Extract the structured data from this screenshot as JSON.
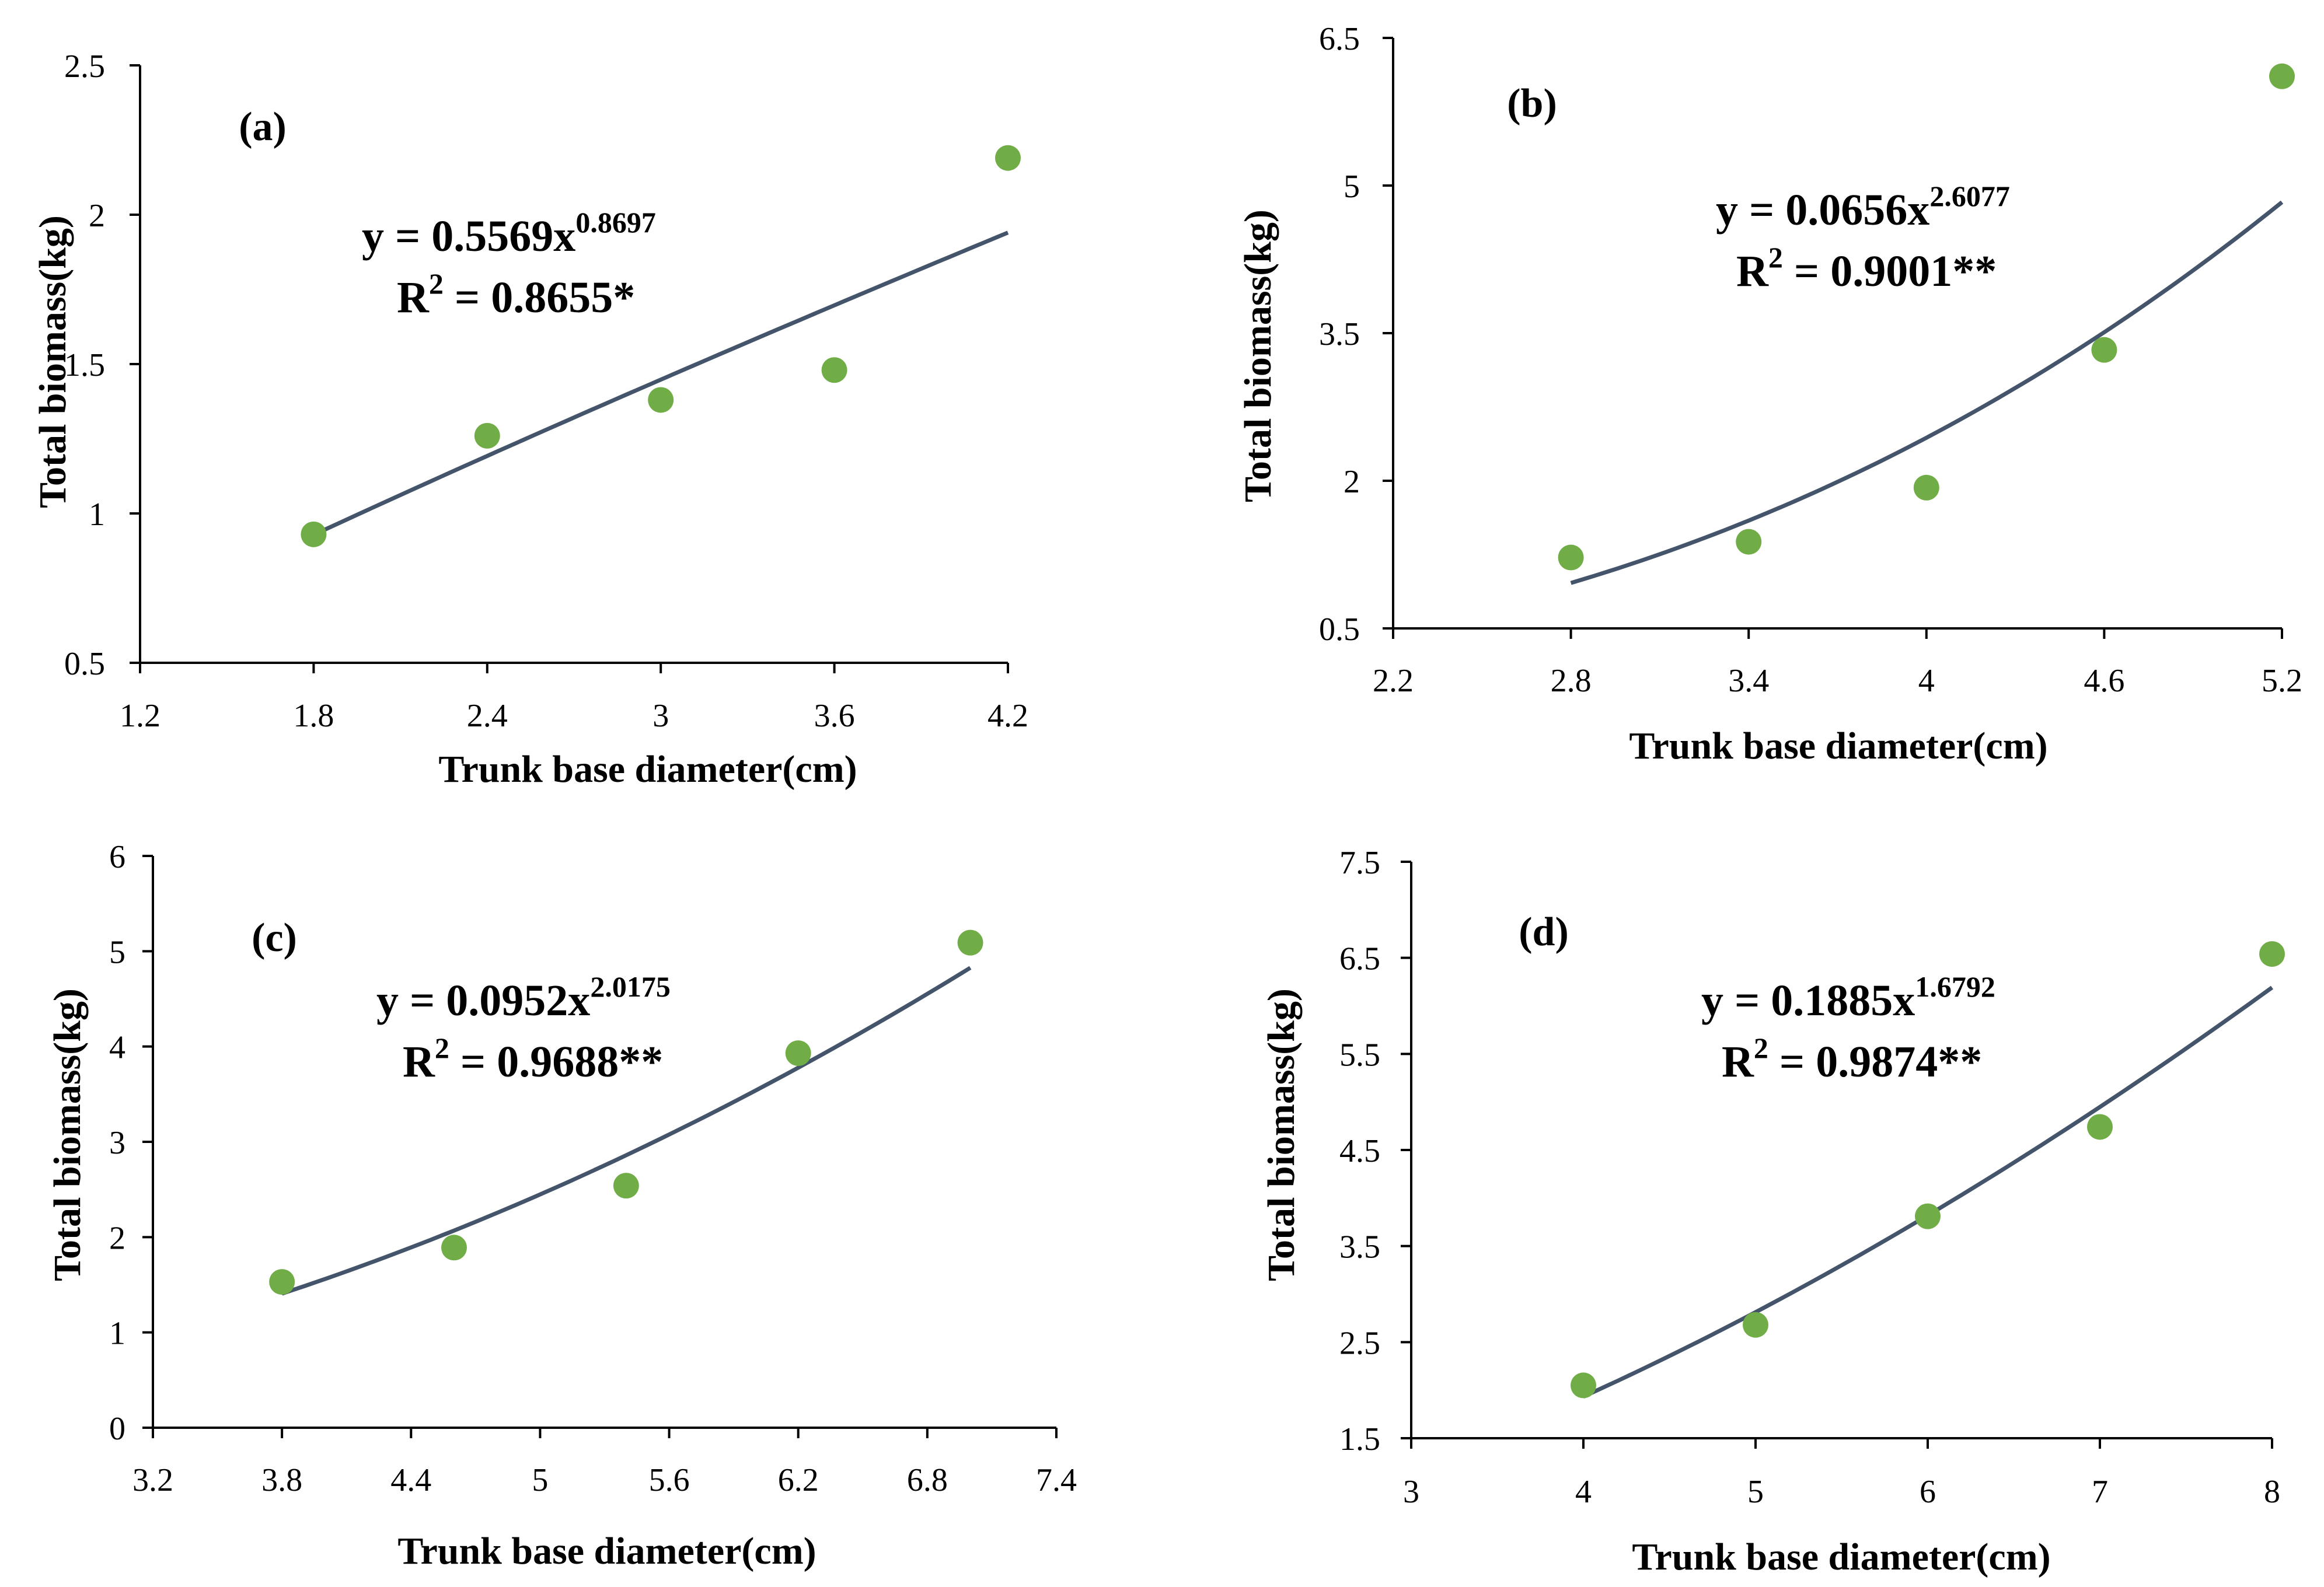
{
  "chart_data": [
    {
      "type": "scatter",
      "panel_label": "(a)",
      "xlabel": "Trunk base diameter(cm)",
      "ylabel": "Total biomass(kg)",
      "xlim": [
        1.2,
        4.2
      ],
      "ylim": [
        0.5,
        2.5
      ],
      "xticks": [
        "1.2",
        "1.8",
        "2.4",
        "3",
        "3.6",
        "4.2"
      ],
      "yticks": [
        "0.5",
        "1",
        "1.5",
        "2",
        "2.5"
      ],
      "x": [
        1.8,
        2.4,
        3.0,
        3.6,
        4.2
      ],
      "y": [
        0.93,
        1.26,
        1.38,
        1.48,
        2.19
      ],
      "fit": {
        "model": "power",
        "a": 0.5569,
        "b": 0.8697,
        "x_range": [
          1.8,
          4.2
        ]
      },
      "equation": {
        "lhs": "y = 0.5569x",
        "exp": "0.8697",
        "r_label": "R",
        "r_sup": "2",
        "r_rhs": " = 0.8655*"
      },
      "marker_color": "#70AD47",
      "line_color": "#44546A"
    },
    {
      "type": "scatter",
      "panel_label": "(b)",
      "xlabel": "Trunk base diameter(cm)",
      "ylabel": "Total biomass(kg)",
      "xlim": [
        2.2,
        5.2
      ],
      "ylim": [
        0.5,
        6.5
      ],
      "xticks": [
        "2.2",
        "2.8",
        "3.4",
        "4",
        "4.6",
        "5.2"
      ],
      "yticks": [
        "0.5",
        "2",
        "3.5",
        "5",
        "6.5"
      ],
      "x": [
        2.8,
        3.4,
        4.0,
        4.6,
        5.2
      ],
      "y": [
        1.22,
        1.38,
        1.93,
        3.33,
        6.11
      ],
      "fit": {
        "model": "power",
        "a": 0.0656,
        "b": 2.6077,
        "x_range": [
          2.8,
          5.2
        ]
      },
      "equation": {
        "lhs": "y = 0.0656x",
        "exp": "2.6077",
        "r_label": "R",
        "r_sup": "2",
        "r_rhs": " = 0.9001**"
      },
      "marker_color": "#70AD47",
      "line_color": "#44546A"
    },
    {
      "type": "scatter",
      "panel_label": "(c)",
      "xlabel": "Trunk base diameter(cm)",
      "ylabel": "Total biomass(kg)",
      "xlim": [
        3.2,
        7.4
      ],
      "ylim": [
        0,
        6
      ],
      "xticks": [
        "3.2",
        "3.8",
        "4.4",
        "5",
        "5.6",
        "6.2",
        "6.8",
        "7.4"
      ],
      "yticks": [
        "0",
        "1",
        "2",
        "3",
        "4",
        "5",
        "6"
      ],
      "x": [
        3.8,
        4.6,
        5.4,
        6.2,
        7.0
      ],
      "y": [
        1.53,
        1.89,
        2.54,
        3.93,
        5.09
      ],
      "fit": {
        "model": "power",
        "a": 0.0952,
        "b": 2.0175,
        "x_range": [
          3.8,
          7.0
        ]
      },
      "equation": {
        "lhs": "y = 0.0952x",
        "exp": "2.0175",
        "r_label": "R",
        "r_sup": "2",
        "r_rhs": " = 0.9688**"
      },
      "marker_color": "#70AD47",
      "line_color": "#44546A"
    },
    {
      "type": "scatter",
      "panel_label": "(d)",
      "xlabel": "Trunk base diameter(cm)",
      "ylabel": "Total biomass(kg)",
      "xlim": [
        3,
        8
      ],
      "ylim": [
        1.5,
        7.5
      ],
      "xticks": [
        "3",
        "4",
        "5",
        "6",
        "7",
        "8"
      ],
      "yticks": [
        "1.5",
        "2.5",
        "3.5",
        "4.5",
        "5.5",
        "6.5",
        "7.5"
      ],
      "x": [
        4,
        5,
        6,
        7,
        8
      ],
      "y": [
        2.05,
        2.68,
        3.81,
        4.74,
        6.54
      ],
      "fit": {
        "model": "power",
        "a": 0.1885,
        "b": 1.6792,
        "x_range": [
          4,
          8
        ]
      },
      "equation": {
        "lhs": "y = 0.1885x",
        "exp": "1.6792",
        "r_label": "R",
        "r_sup": "2",
        "r_rhs": " = 0.9874**"
      },
      "marker_color": "#70AD47",
      "line_color": "#44546A"
    }
  ]
}
